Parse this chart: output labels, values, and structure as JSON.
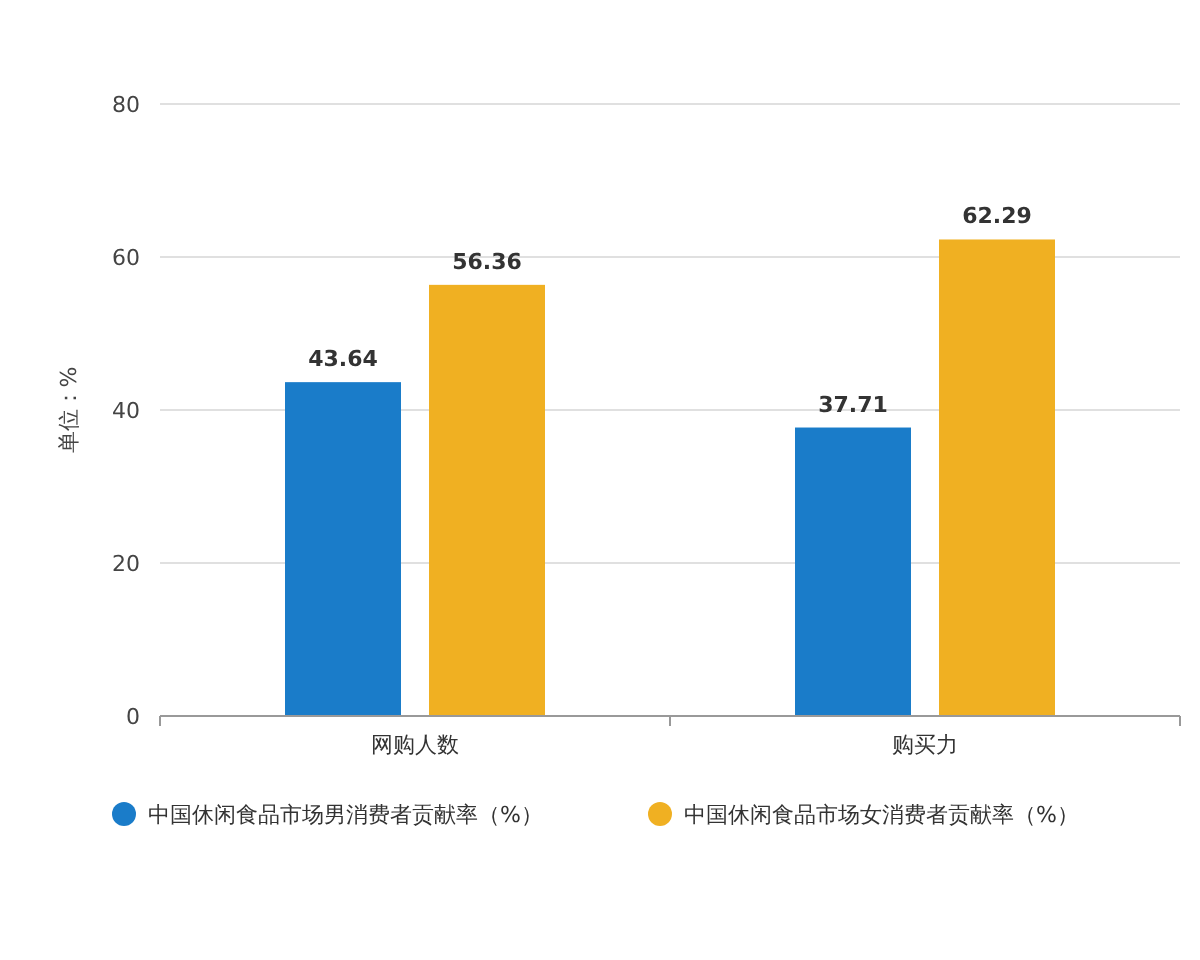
{
  "chart_data": {
    "type": "bar",
    "ylabel": "单位：%",
    "categories": [
      "网购人数",
      "购买力"
    ],
    "series": [
      {
        "name": "中国休闲食品市场男消费者贡献率（%）",
        "color": "#1a7cc9",
        "values": [
          43.64,
          37.71
        ]
      },
      {
        "name": "中国休闲食品市场女消费者贡献率（%）",
        "color": "#f0b022",
        "values": [
          56.36,
          62.29
        ]
      }
    ],
    "ylim": [
      0,
      80
    ],
    "yticks": [
      0,
      20,
      40,
      60,
      80
    ],
    "grid": "y",
    "legend": "bottom",
    "data_labels": true
  }
}
